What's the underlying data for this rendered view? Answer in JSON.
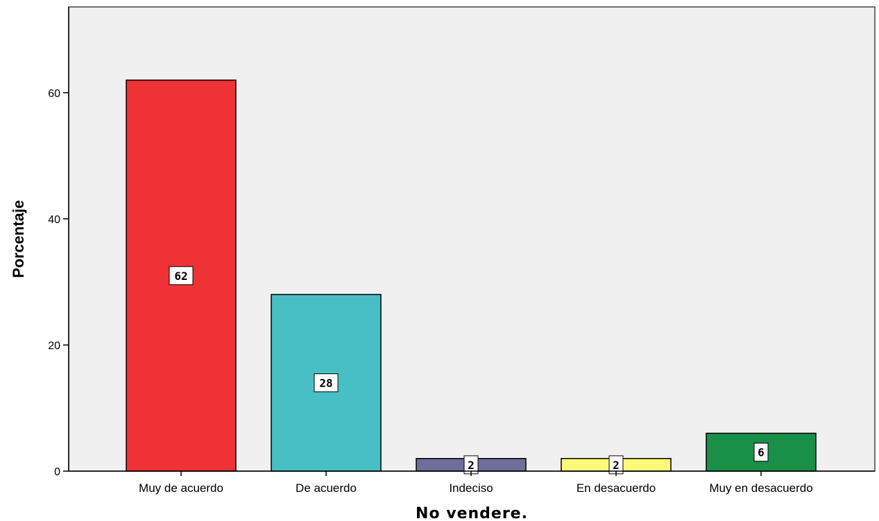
{
  "chart_data": {
    "type": "bar",
    "categories": [
      "Muy de acuerdo",
      "De acuerdo",
      "Indeciso",
      "En desacuerdo",
      "Muy en desacuerdo"
    ],
    "values": [
      62,
      28,
      2,
      2,
      6
    ],
    "data_labels": [
      "62",
      "28",
      "2",
      "2",
      "6"
    ],
    "colors": [
      "#ef3236",
      "#48bfc4",
      "#6e6e9c",
      "#fafa78",
      "#1a8f48"
    ],
    "xlabel": "No vendere.",
    "ylabel": "Porcentaje",
    "ylim": [
      0,
      73.6
    ],
    "yticks": [
      0,
      20,
      40,
      60
    ],
    "ytick_labels": [
      "0",
      "20",
      "40",
      "60"
    ],
    "grid": false,
    "plot_background": "#f0f0f0"
  }
}
